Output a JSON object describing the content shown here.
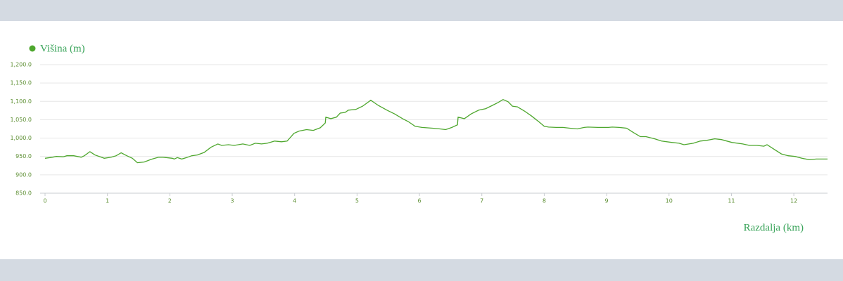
{
  "chart_data": {
    "type": "line",
    "x_label": "Razdalja (km)",
    "legend": "top-left",
    "grid": true,
    "xlim": [
      0,
      12.54
    ],
    "xticks": [
      0,
      1,
      2,
      3,
      4,
      5,
      6,
      7,
      8,
      9,
      10,
      11,
      12
    ],
    "ylim": [
      850,
      1200
    ],
    "yticks": [
      {
        "value": 850,
        "label": "850.0"
      },
      {
        "value": 900,
        "label": "900.0"
      },
      {
        "value": 950,
        "label": "950.0"
      },
      {
        "value": 1000,
        "label": "1,000.0"
      },
      {
        "value": 1050,
        "label": "1,050.0"
      },
      {
        "value": 1100,
        "label": "1,100.0"
      },
      {
        "value": 1150,
        "label": "1,150.0"
      },
      {
        "value": 1200,
        "label": "1,200.0"
      }
    ],
    "x": [
      0,
      0.12,
      0.18,
      0.29,
      0.35,
      0.46,
      0.58,
      0.63,
      0.72,
      0.8,
      0.95,
      1.06,
      1.14,
      1.22,
      1.31,
      1.4,
      1.48,
      1.59,
      1.7,
      1.82,
      1.89,
      2.04,
      2.07,
      2.12,
      2.19,
      2.27,
      2.35,
      2.44,
      2.55,
      2.66,
      2.77,
      2.83,
      2.94,
      3.03,
      3.17,
      3.28,
      3.37,
      3.47,
      3.56,
      3.68,
      3.79,
      3.88,
      3.99,
      4.07,
      4.19,
      4.3,
      4.41,
      4.49,
      4.5,
      4.58,
      4.67,
      4.73,
      4.81,
      4.86,
      4.98,
      5.09,
      5.22,
      5.34,
      5.48,
      5.6,
      5.73,
      5.82,
      5.93,
      6.04,
      6.21,
      6.33,
      6.42,
      6.52,
      6.61,
      6.62,
      6.72,
      6.83,
      6.95,
      7.06,
      7.17,
      7.26,
      7.34,
      7.42,
      7.49,
      7.57,
      7.68,
      7.79,
      7.91,
      8,
      8.07,
      8.19,
      8.3,
      8.41,
      8.53,
      8.64,
      8.7,
      8.86,
      9.03,
      9.09,
      9.2,
      9.32,
      9.43,
      9.54,
      9.63,
      9.77,
      9.88,
      10.05,
      10.16,
      10.24,
      10.39,
      10.5,
      10.61,
      10.73,
      10.84,
      11.01,
      11.18,
      11.29,
      11.41,
      11.52,
      11.57,
      11.69,
      11.8,
      11.91,
      12.02,
      12.13,
      12.25,
      12.36,
      12.54
    ],
    "series": [
      {
        "name": "Višina (m)",
        "color": "#4ea72e",
        "values": [
          945,
          948,
          950,
          949,
          952,
          952,
          948,
          952,
          963,
          954,
          945,
          948,
          952,
          960,
          952,
          945,
          933,
          935,
          942,
          948,
          948,
          945,
          943,
          947,
          943,
          947,
          952,
          954,
          961,
          975,
          984,
          980,
          982,
          980,
          984,
          980,
          986,
          984,
          986,
          992,
          990,
          992,
          1013,
          1019,
          1023,
          1021,
          1028,
          1041,
          1057,
          1053,
          1057,
          1068,
          1070,
          1076,
          1078,
          1087,
          1103,
          1089,
          1076,
          1066,
          1053,
          1045,
          1032,
          1029,
          1027,
          1025,
          1023,
          1029,
          1036,
          1057,
          1053,
          1066,
          1076,
          1080,
          1089,
          1097,
          1105,
          1099,
          1087,
          1085,
          1074,
          1061,
          1045,
          1032,
          1030,
          1029,
          1029,
          1027,
          1025,
          1029,
          1030,
          1029,
          1029,
          1030,
          1029,
          1027,
          1015,
          1004,
          1004,
          998,
          992,
          988,
          986,
          982,
          986,
          992,
          994,
          998,
          996,
          988,
          984,
          980,
          980,
          978,
          982,
          969,
          957,
          952,
          950,
          945,
          941,
          943,
          943
        ]
      }
    ]
  }
}
